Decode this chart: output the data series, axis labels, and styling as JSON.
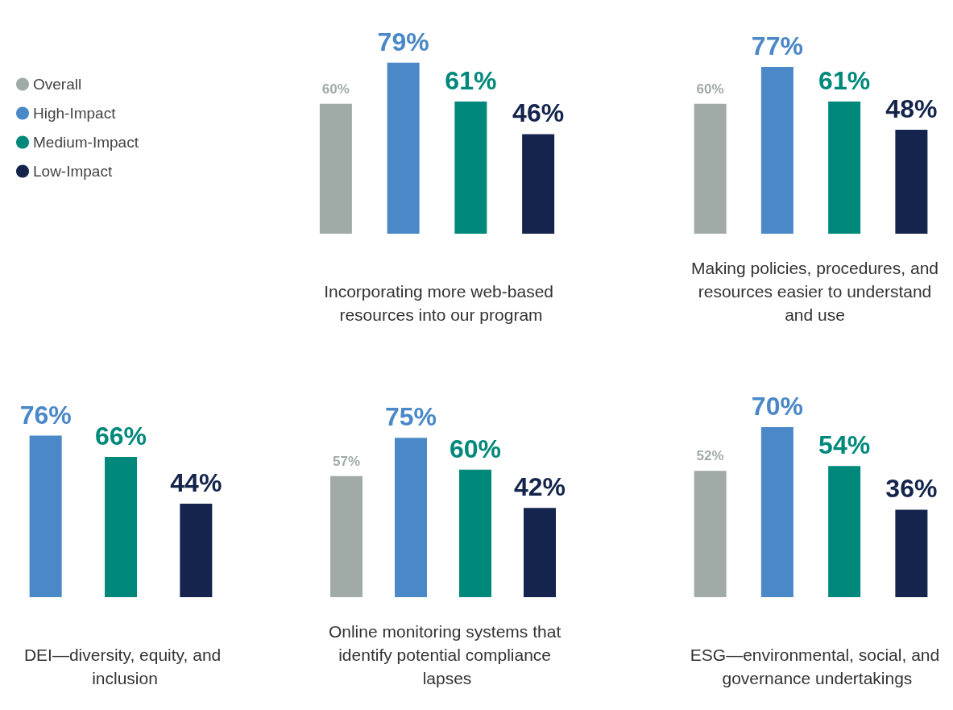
{
  "chart_data": [
    {
      "type": "bar",
      "categories": [
        null,
        null,
        null,
        null
      ],
      "xlabel": "Incorporating more web-based resources into our program",
      "legend": "left",
      "stacked": true,
      "series": [
        {
          "name": "Overall",
          "color": "#a0aba8",
          "values": [
            60,
            null,
            null,
            null
          ],
          "value_labels": [
            "60%",
            null,
            null,
            null
          ]
        },
        {
          "name": "High-Impact",
          "color": "#4a88c8",
          "values": [
            null,
            79,
            null,
            null
          ],
          "value_labels": [
            null,
            "79%",
            null,
            null
          ]
        },
        {
          "name": "Medium-Impact",
          "color": "#00897b",
          "values": [
            null,
            null,
            61,
            null
          ],
          "value_labels": [
            null,
            null,
            "61%",
            null
          ]
        },
        {
          "name": "Low-Impact",
          "color": "#14244c",
          "values": [
            null,
            null,
            null,
            46
          ],
          "value_labels": [
            null,
            null,
            null,
            "46%"
          ]
        }
      ]
    },
    {
      "type": "bar",
      "categories": [
        null,
        null,
        null,
        null
      ],
      "xlabel": "Making policies, procedures, and resources easier to understand and use",
      "values": [
        60,
        77,
        61,
        48
      ],
      "colors": [
        "#a0aba8",
        "#4a88c8",
        "#00897b",
        "#14244c"
      ],
      "value_labels": [
        "60%",
        "77%",
        "61%",
        "48%"
      ]
    },
    {
      "type": "bar",
      "categories": [
        null,
        null,
        null
      ],
      "xlabel": "DEI—diversity, equity, and inclusion",
      "values": [
        76,
        66,
        44
      ],
      "colors": [
        "#4a88c8",
        "#00897b",
        "#14244c"
      ],
      "value_labels": [
        "76%",
        "66%",
        "44%"
      ]
    },
    {
      "type": "bar",
      "categories": [
        null,
        null,
        null,
        null
      ],
      "xlabel": "Online monitoring systems that identify potential compliance lapses",
      "values": [
        57,
        75,
        60,
        42
      ],
      "colors": [
        "#a0aba8",
        "#4a88c8",
        "#00897b",
        "#14244c"
      ],
      "value_labels": [
        "57%",
        "75%",
        "60%",
        "42%"
      ]
    },
    {
      "type": "bar",
      "categories": [
        null,
        null,
        null,
        null
      ],
      "xlabel": "ESG—environmental, social, and governance undertakings",
      "values": [
        52,
        70,
        54,
        36
      ],
      "colors": [
        "#a0aba8",
        "#4a88c8",
        "#00897b",
        "#14244c"
      ],
      "value_labels": [
        "52%",
        "70%",
        "54%",
        "36%"
      ]
    }
  ]
}
